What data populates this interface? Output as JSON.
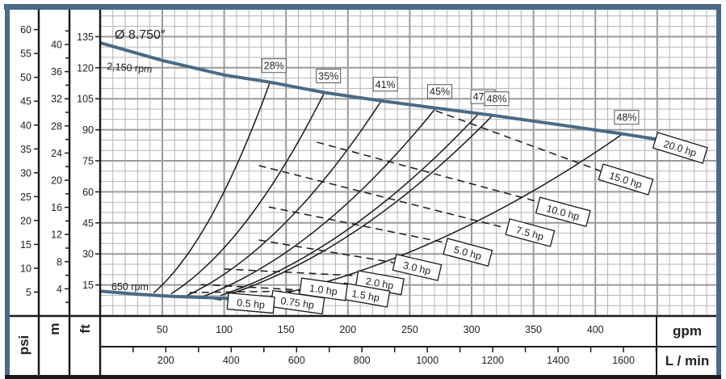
{
  "chart_data": {
    "type": "line",
    "title": "Ø 8.750″",
    "xlabel": "gpm",
    "x2label": "L / min",
    "ylabels": [
      "psi",
      "m",
      "ft"
    ],
    "xlim": [
      0,
      500
    ],
    "ylim": [
      0,
      148
    ],
    "grid": true,
    "x_ticks": [
      50,
      100,
      150,
      200,
      250,
      300,
      350,
      400
    ],
    "x2_ticks_labeled": [
      200,
      400,
      600,
      800,
      1000,
      1200,
      1400,
      1600
    ],
    "x2_ticks_minor": [
      100,
      300,
      500,
      700,
      900,
      1100,
      1300,
      1500,
      1700
    ],
    "ft_ticks": [
      15,
      30,
      45,
      60,
      75,
      90,
      105,
      120,
      135
    ],
    "psi_ticks": [
      5,
      10,
      15,
      20,
      25,
      30,
      35,
      40,
      45,
      50,
      55,
      60
    ],
    "m_ticks_labeled": [
      4,
      8,
      12,
      16,
      20,
      24,
      28,
      32,
      36,
      40
    ],
    "m_ticks_minor": [
      2,
      6,
      10,
      14,
      18,
      22,
      26,
      30,
      34,
      38,
      42
    ],
    "speed_curves": [
      {
        "name": "2,150 rpm",
        "color": "#4a6a85",
        "points": [
          [
            0,
            132
          ],
          [
            50,
            123.5
          ],
          [
            100,
            116.5
          ],
          [
            137,
            113
          ],
          [
            181,
            108
          ],
          [
            227,
            104
          ],
          [
            271,
            100.5
          ],
          [
            317,
            97
          ],
          [
            370,
            92.5
          ],
          [
            422,
            88
          ],
          [
            449,
            85.5
          ]
        ]
      },
      {
        "name": "650 rpm",
        "color": "#4a6a85",
        "points": [
          [
            0,
            12
          ],
          [
            30,
            10.5
          ],
          [
            60,
            9.4
          ],
          [
            105,
            8.5
          ]
        ]
      }
    ],
    "efficiency_curves": [
      {
        "label": "28%",
        "from_gpm": 43,
        "to": [
          137,
          113
        ]
      },
      {
        "label": "35%",
        "from_gpm": 57,
        "to": [
          181,
          108
        ]
      },
      {
        "label": "41%",
        "from_gpm": 70,
        "to": [
          227,
          104
        ]
      },
      {
        "label": "45%",
        "from_gpm": 83,
        "to": [
          271,
          100.5
        ]
      },
      {
        "label": "47%",
        "from_gpm": 97,
        "to": [
          306,
          98
        ]
      },
      {
        "label": "48%",
        "from_gpm": 104,
        "to": [
          317,
          97
        ]
      },
      {
        "label": "48%",
        "from_gpm": 112,
        "to": [
          422,
          88
        ]
      }
    ],
    "power_lines": [
      {
        "label": "20.0 hp",
        "points": [
          [
            415,
            89
          ],
          [
            449,
            84.8
          ]
        ]
      },
      {
        "label": "15.0 hp",
        "points": [
          [
            271,
            99.2
          ],
          [
            405,
            69.9
          ]
        ]
      },
      {
        "label": "10.0 hp",
        "points": [
          [
            175,
            84
          ],
          [
            355,
            55
          ]
        ]
      },
      {
        "label": "7.5 hp",
        "points": [
          [
            128,
            72.7
          ],
          [
            327,
            42.6
          ]
        ]
      },
      {
        "label": "5.0 hp",
        "points": [
          [
            136,
            52.7
          ],
          [
            278,
            35.5
          ]
        ]
      },
      {
        "label": "3.0 hp",
        "points": [
          [
            128,
            36.7
          ],
          [
            237,
            25.8
          ]
        ]
      },
      {
        "label": "2.0 hp",
        "points": [
          [
            100,
            22.7
          ],
          [
            229,
            18.8
          ]
        ]
      },
      {
        "label": "1.5 hp",
        "points": [
          [
            81,
            15.2
          ],
          [
            200,
            11.3
          ]
        ]
      },
      {
        "label": "1.0 hp",
        "points": [
          [
            72,
            11.3
          ],
          [
            162,
            12.1
          ]
        ]
      },
      {
        "label": "0.75 hp",
        "points": [
          [
            79,
            9.4
          ],
          [
            141,
            7.4
          ]
        ]
      },
      {
        "label": "0.5 hp",
        "points": [
          [
            92,
            8.2
          ],
          [
            102,
            7.4
          ]
        ]
      }
    ],
    "annotations": {
      "diameter": "Ø 8.750″",
      "max_speed": "2,150 rpm",
      "min_speed": "650 rpm"
    },
    "colors": {
      "frame": "#4a6a85",
      "grid_major": "#9a9a9a",
      "grid_minor": "#b4b4b4",
      "ink": "#1a1a1a"
    }
  }
}
